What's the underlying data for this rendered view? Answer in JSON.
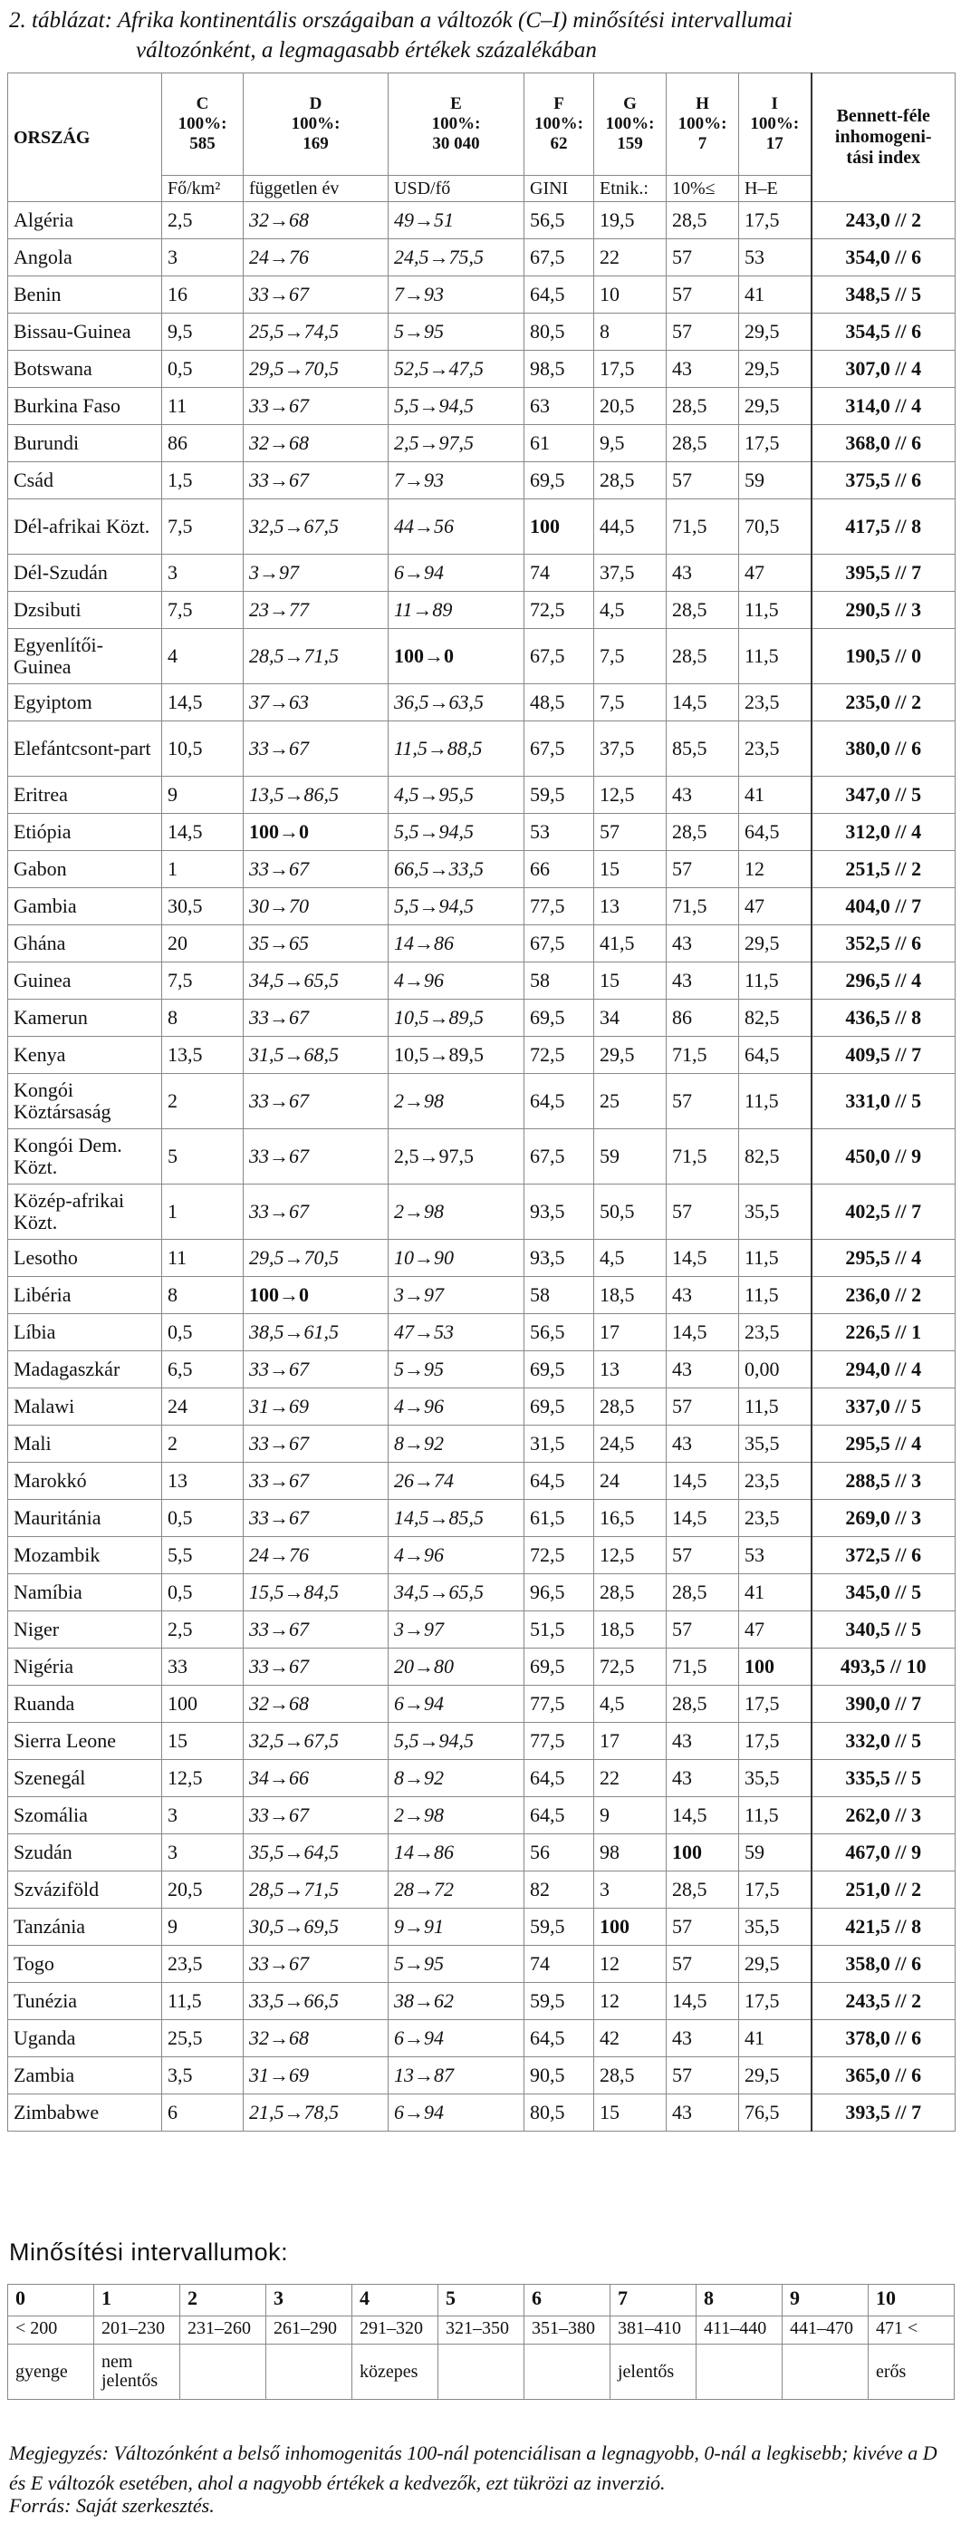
{
  "caption": {
    "line1": "2. táblázat: Afrika kontinentális országaiban a változók (C–I) minősítési intervallumai",
    "line2": "változónként, a legmagasabb értékek százalékában"
  },
  "header": {
    "country": "ORSZÁG",
    "cols": [
      {
        "code": "C",
        "pct": "100%:",
        "max": "585",
        "unit": "Fő/km²"
      },
      {
        "code": "D",
        "pct": "100%:",
        "max": "169",
        "unit": "független év"
      },
      {
        "code": "E",
        "pct": "100%:",
        "max": "30 040",
        "unit": "USD/fő"
      },
      {
        "code": "F",
        "pct": "100%:",
        "max": "62",
        "unit": "GINI"
      },
      {
        "code": "G",
        "pct": "100%:",
        "max": "159",
        "unit": "Etnik.:"
      },
      {
        "code": "H",
        "pct": "100%:",
        "max": "7",
        "unit": "10%≤"
      },
      {
        "code": "I",
        "pct": "100%:",
        "max": "17",
        "unit": "H–E"
      }
    ],
    "bennett": [
      "Bennett-féle",
      "inhomogeni-",
      "tási index"
    ]
  },
  "rows": [
    {
      "country": "Algéria",
      "c": "2,5",
      "d": "32→68",
      "e": "49→51",
      "f": "56,5",
      "g": "19,5",
      "h": "28,5",
      "i": "17,5",
      "idx": "243,0 // 2"
    },
    {
      "country": "Angola",
      "c": "3",
      "d": "24→76",
      "e": "24,5→75,5",
      "f": "67,5",
      "g": "22",
      "h": "57",
      "i": "53",
      "idx": "354,0 // 6"
    },
    {
      "country": "Benin",
      "c": "16",
      "d": "33→67",
      "e": "7→93",
      "f": "64,5",
      "g": "10",
      "h": "57",
      "i": "41",
      "idx": "348,5 // 5"
    },
    {
      "country": "Bissau-Guinea",
      "c": "9,5",
      "d": "25,5→74,5",
      "e": "5→95",
      "f": "80,5",
      "g": "8",
      "h": "57",
      "i": "29,5",
      "idx": "354,5 // 6"
    },
    {
      "country": "Botswana",
      "c": "0,5",
      "d": "29,5→70,5",
      "e": "52,5→47,5",
      "f": "98,5",
      "g": "17,5",
      "h": "43",
      "i": "29,5",
      "idx": "307,0 // 4"
    },
    {
      "country": "Burkina Faso",
      "c": "11",
      "d": "33→67",
      "e": "5,5→94,5",
      "f": "63",
      "g": "20,5",
      "h": "28,5",
      "i": "29,5",
      "idx": "314,0 // 4"
    },
    {
      "country": "Burundi",
      "c": "86",
      "d": "32→68",
      "e": "2,5→97,5",
      "f": "61",
      "g": "9,5",
      "h": "28,5",
      "i": "17,5",
      "idx": "368,0 // 6"
    },
    {
      "country": "Csád",
      "c": "1,5",
      "d": "33→67",
      "e": "7→93",
      "f": "69,5",
      "g": "28,5",
      "h": "57",
      "i": "59",
      "idx": "375,5 // 6"
    },
    {
      "country": "Dél-afrikai Közt.",
      "c": "7,5",
      "d": "32,5→67,5",
      "e": "44→56",
      "f": "100",
      "g": "44,5",
      "h": "71,5",
      "i": "70,5",
      "idx": "417,5 // 8",
      "tall": true,
      "fbold": true
    },
    {
      "country": "Dél-Szudán",
      "c": "3",
      "d": "3→97",
      "e": "6→94",
      "f": "74",
      "g": "37,5",
      "h": "43",
      "i": "47",
      "idx": "395,5 // 7"
    },
    {
      "country": "Dzsibuti",
      "c": "7,5",
      "d": "23→77",
      "e": "11→89",
      "f": "72,5",
      "g": "4,5",
      "h": "28,5",
      "i": "11,5",
      "idx": "290,5 // 3"
    },
    {
      "country": "Egyenlítői-Guinea",
      "c": "4",
      "d": "28,5→71,5",
      "e": "100→0",
      "f": "67,5",
      "g": "7,5",
      "h": "28,5",
      "i": "11,5",
      "idx": "190,5 // 0",
      "tall": true,
      "ebold": true
    },
    {
      "country": "Egyiptom",
      "c": "14,5",
      "d": "37→63",
      "e": "36,5→63,5",
      "f": "48,5",
      "g": "7,5",
      "h": "14,5",
      "i": "23,5",
      "idx": "235,0 // 2"
    },
    {
      "country": "Elefántcsont-part",
      "c": "10,5",
      "d": "33→67",
      "e": "11,5→88,5",
      "f": "67,5",
      "g": "37,5",
      "h": "85,5",
      "i": "23,5",
      "idx": "380,0 // 6",
      "tall": true
    },
    {
      "country": "Eritrea",
      "c": "9",
      "d": "13,5→86,5",
      "e": "4,5→95,5",
      "f": "59,5",
      "g": "12,5",
      "h": "43",
      "i": "41",
      "idx": "347,0 // 5"
    },
    {
      "country": "Etiópia",
      "c": "14,5",
      "d": "100→0",
      "e": "5,5→94,5",
      "f": "53",
      "g": "57",
      "h": "28,5",
      "i": "64,5",
      "idx": "312,0 // 4",
      "dbold": true
    },
    {
      "country": "Gabon",
      "c": "1",
      "d": "33→67",
      "e": "66,5→33,5",
      "f": "66",
      "g": "15",
      "h": "57",
      "i": "12",
      "idx": "251,5 // 2"
    },
    {
      "country": "Gambia",
      "c": "30,5",
      "d": "30→70",
      "e": "5,5→94,5",
      "f": "77,5",
      "g": "13",
      "h": "71,5",
      "i": "47",
      "idx": "404,0 // 7"
    },
    {
      "country": "Ghána",
      "c": "20",
      "d": "35→65",
      "e": "14→86",
      "f": "67,5",
      "g": "41,5",
      "h": "43",
      "i": "29,5",
      "idx": "352,5 // 6"
    },
    {
      "country": "Guinea",
      "c": "7,5",
      "d": "34,5→65,5",
      "e": "4→96",
      "f": "58",
      "g": "15",
      "h": "43",
      "i": "11,5",
      "idx": "296,5 // 4"
    },
    {
      "country": "Kamerun",
      "c": "8",
      "d": "33→67",
      "e": "10,5→89,5",
      "f": "69,5",
      "g": "34",
      "h": "86",
      "i": "82,5",
      "idx": "436,5 // 8"
    },
    {
      "country": "Kenya",
      "c": "13,5",
      "d": "31,5→68,5",
      "e": "10,5→89,5",
      "f": "72,5",
      "g": "29,5",
      "h": "71,5",
      "i": "64,5",
      "idx": "409,5 // 7",
      "enormal": true
    },
    {
      "country": "Kongói Köztársaság",
      "c": "2",
      "d": "33→67",
      "e": "2→98",
      "f": "64,5",
      "g": "25",
      "h": "57",
      "i": "11,5",
      "idx": "331,0 // 5",
      "tall": true
    },
    {
      "country": "Kongói Dem. Közt.",
      "c": "5",
      "d": "33→67",
      "e": "2,5→97,5",
      "f": "67,5",
      "g": "59",
      "h": "71,5",
      "i": "82,5",
      "idx": "450,0 // 9",
      "tall": true,
      "enormal": true
    },
    {
      "country": "Közép-afrikai Közt.",
      "c": "1",
      "d": "33→67",
      "e": "2→98",
      "f": "93,5",
      "g": "50,5",
      "h": "57",
      "i": "35,5",
      "idx": "402,5 // 7",
      "tall": true
    },
    {
      "country": "Lesotho",
      "c": "11",
      "d": "29,5→70,5",
      "e": "10→90",
      "f": "93,5",
      "g": "4,5",
      "h": "14,5",
      "i": "11,5",
      "idx": "295,5 // 4"
    },
    {
      "country": "Libéria",
      "c": "8",
      "d": "100→0",
      "e": "3→97",
      "f": "58",
      "g": "18,5",
      "h": "43",
      "i": "11,5",
      "idx": "236,0 // 2",
      "dbold": true
    },
    {
      "country": "Líbia",
      "c": "0,5",
      "d": "38,5→61,5",
      "e": "47→53",
      "f": "56,5",
      "g": "17",
      "h": "14,5",
      "i": "23,5",
      "idx": "226,5 // 1"
    },
    {
      "country": "Madagaszkár",
      "c": "6,5",
      "d": "33→67",
      "e": "5→95",
      "f": "69,5",
      "g": "13",
      "h": "43",
      "i": "0,00",
      "idx": "294,0 // 4"
    },
    {
      "country": "Malawi",
      "c": "24",
      "d": "31→69",
      "e": "4→96",
      "f": "69,5",
      "g": "28,5",
      "h": "57",
      "i": "11,5",
      "idx": "337,0 // 5"
    },
    {
      "country": "Mali",
      "c": "2",
      "d": "33→67",
      "e": "8→92",
      "f": "31,5",
      "g": "24,5",
      "h": "43",
      "i": "35,5",
      "idx": "295,5 // 4"
    },
    {
      "country": "Marokkó",
      "c": "13",
      "d": "33→67",
      "e": "26→74",
      "f": "64,5",
      "g": "24",
      "h": "14,5",
      "i": "23,5",
      "idx": "288,5 // 3"
    },
    {
      "country": "Mauritánia",
      "c": "0,5",
      "d": "33→67",
      "e": "14,5→85,5",
      "f": "61,5",
      "g": "16,5",
      "h": "14,5",
      "i": "23,5",
      "idx": "269,0 // 3"
    },
    {
      "country": "Mozambik",
      "c": "5,5",
      "d": "24→76",
      "e": "4→96",
      "f": "72,5",
      "g": "12,5",
      "h": "57",
      "i": "53",
      "idx": "372,5 // 6"
    },
    {
      "country": "Namíbia",
      "c": "0,5",
      "d": "15,5→84,5",
      "e": "34,5→65,5",
      "f": "96,5",
      "g": "28,5",
      "h": "28,5",
      "i": "41",
      "idx": "345,0 // 5"
    },
    {
      "country": "Niger",
      "c": "2,5",
      "d": "33→67",
      "e": "3→97",
      "f": "51,5",
      "g": "18,5",
      "h": "57",
      "i": "47",
      "idx": "340,5 // 5"
    },
    {
      "country": "Nigéria",
      "c": "33",
      "d": "33→67",
      "e": "20→80",
      "f": "69,5",
      "g": "72,5",
      "h": "71,5",
      "i": "100",
      "idx": "493,5 // 10",
      "ibold": true
    },
    {
      "country": "Ruanda",
      "c": "100",
      "d": "32→68",
      "e": "6→94",
      "f": "77,5",
      "g": "4,5",
      "h": "28,5",
      "i": "17,5",
      "idx": "390,0 // 7"
    },
    {
      "country": "Sierra Leone",
      "c": "15",
      "d": "32,5→67,5",
      "e": "5,5→94,5",
      "f": "77,5",
      "g": "17",
      "h": "43",
      "i": "17,5",
      "idx": "332,0 // 5"
    },
    {
      "country": "Szenegál",
      "c": "12,5",
      "d": "34→66",
      "e": "8→92",
      "f": "64,5",
      "g": "22",
      "h": "43",
      "i": "35,5",
      "idx": "335,5 // 5"
    },
    {
      "country": "Szomália",
      "c": "3",
      "d": "33→67",
      "e": "2→98",
      "f": "64,5",
      "g": "9",
      "h": "14,5",
      "i": "11,5",
      "idx": "262,0 // 3"
    },
    {
      "country": "Szudán",
      "c": "3",
      "d": "35,5→64,5",
      "e": "14→86",
      "f": "56",
      "g": "98",
      "h": "100",
      "i": "59",
      "idx": "467,0 // 9",
      "hbold": true
    },
    {
      "country": "Szváziföld",
      "c": "20,5",
      "d": "28,5→71,5",
      "e": "28→72",
      "f": "82",
      "g": "3",
      "h": "28,5",
      "i": "17,5",
      "idx": "251,0 // 2"
    },
    {
      "country": "Tanzánia",
      "c": "9",
      "d": "30,5→69,5",
      "e": "9→91",
      "f": "59,5",
      "g": "100",
      "h": "57",
      "i": "35,5",
      "idx": "421,5 // 8",
      "gbold": true
    },
    {
      "country": "Togo",
      "c": "23,5",
      "d": "33→67",
      "e": "5→95",
      "f": "74",
      "g": "12",
      "h": "57",
      "i": "29,5",
      "idx": "358,0 // 6"
    },
    {
      "country": "Tunézia",
      "c": "11,5",
      "d": "33,5→66,5",
      "e": "38→62",
      "f": "59,5",
      "g": "12",
      "h": "14,5",
      "i": "17,5",
      "idx": "243,5 // 2"
    },
    {
      "country": "Uganda",
      "c": "25,5",
      "d": "32→68",
      "e": "6→94",
      "f": "64,5",
      "g": "42",
      "h": "43",
      "i": "41",
      "idx": "378,0 // 6"
    },
    {
      "country": "Zambia",
      "c": "3,5",
      "d": "31→69",
      "e": "13→87",
      "f": "90,5",
      "g": "28,5",
      "h": "57",
      "i": "29,5",
      "idx": "365,0 // 6"
    },
    {
      "country": "Zimbabwe",
      "c": "6",
      "d": "21,5→78,5",
      "e": "6→94",
      "f": "80,5",
      "g": "15",
      "h": "43",
      "i": "76,5",
      "idx": "393,5 // 7"
    }
  ],
  "intervals": {
    "title": "Minősítési intervallumok:",
    "codes": [
      "0",
      "1",
      "2",
      "3",
      "4",
      "5",
      "6",
      "7",
      "8",
      "9",
      "10"
    ],
    "ranges": [
      "< 200",
      "201–230",
      "231–260",
      "261–290",
      "291–320",
      "321–350",
      "351–380",
      "381–410",
      "411–440",
      "441–470",
      "471 <"
    ],
    "labels": [
      "gyenge",
      "nem jelentős",
      "",
      "",
      "közepes",
      "",
      "",
      "jelentős",
      "",
      "",
      "erős"
    ]
  },
  "note": "Megjegyzés: Változónként a belső inhomogenitás 100-nál potenciálisan a legnagyobb, 0-nál a legkisebb; kivéve a D és E változók esetében, ahol a nagyobb értékek a kedvezők, ezt tükrözi az inverzió.",
  "source": "Forrás: Saját szerkesztés."
}
